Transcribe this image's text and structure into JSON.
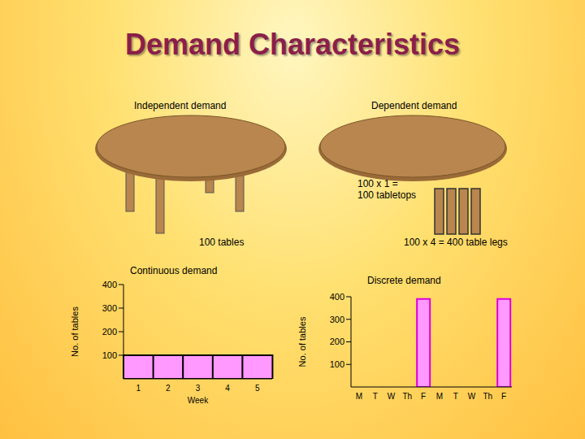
{
  "title": "Demand Characteristics",
  "illustrations": {
    "independent": {
      "label": "Independent demand",
      "caption": "100 tables"
    },
    "dependent": {
      "label": "Dependent demand",
      "tabletops": [
        "100 x 1 =",
        "100 tabletops"
      ],
      "legs": "100 x 4 = 400 table legs"
    }
  },
  "chart_data": [
    {
      "type": "bar",
      "title": "Continuous demand",
      "x_label": "Week",
      "y_label": "No. of tables",
      "categories": [
        "1",
        "2",
        "3",
        "4",
        "5"
      ],
      "values": [
        100,
        100,
        100,
        100,
        100
      ],
      "color": "#ff99ff",
      "ylim": [
        0,
        400
      ],
      "yticks": [
        100,
        200,
        300,
        400
      ]
    },
    {
      "type": "bar",
      "title": "Discrete demand",
      "y_label": "No. of tables",
      "categories": [
        "M",
        "T",
        "W",
        "Th",
        "F",
        "M",
        "T",
        "W",
        "Th",
        "F"
      ],
      "values": [
        0,
        0,
        0,
        0,
        390,
        0,
        0,
        0,
        0,
        390
      ],
      "color": "#ff99ff",
      "ylim": [
        0,
        400
      ],
      "yticks": [
        100,
        200,
        300,
        400
      ]
    }
  ]
}
